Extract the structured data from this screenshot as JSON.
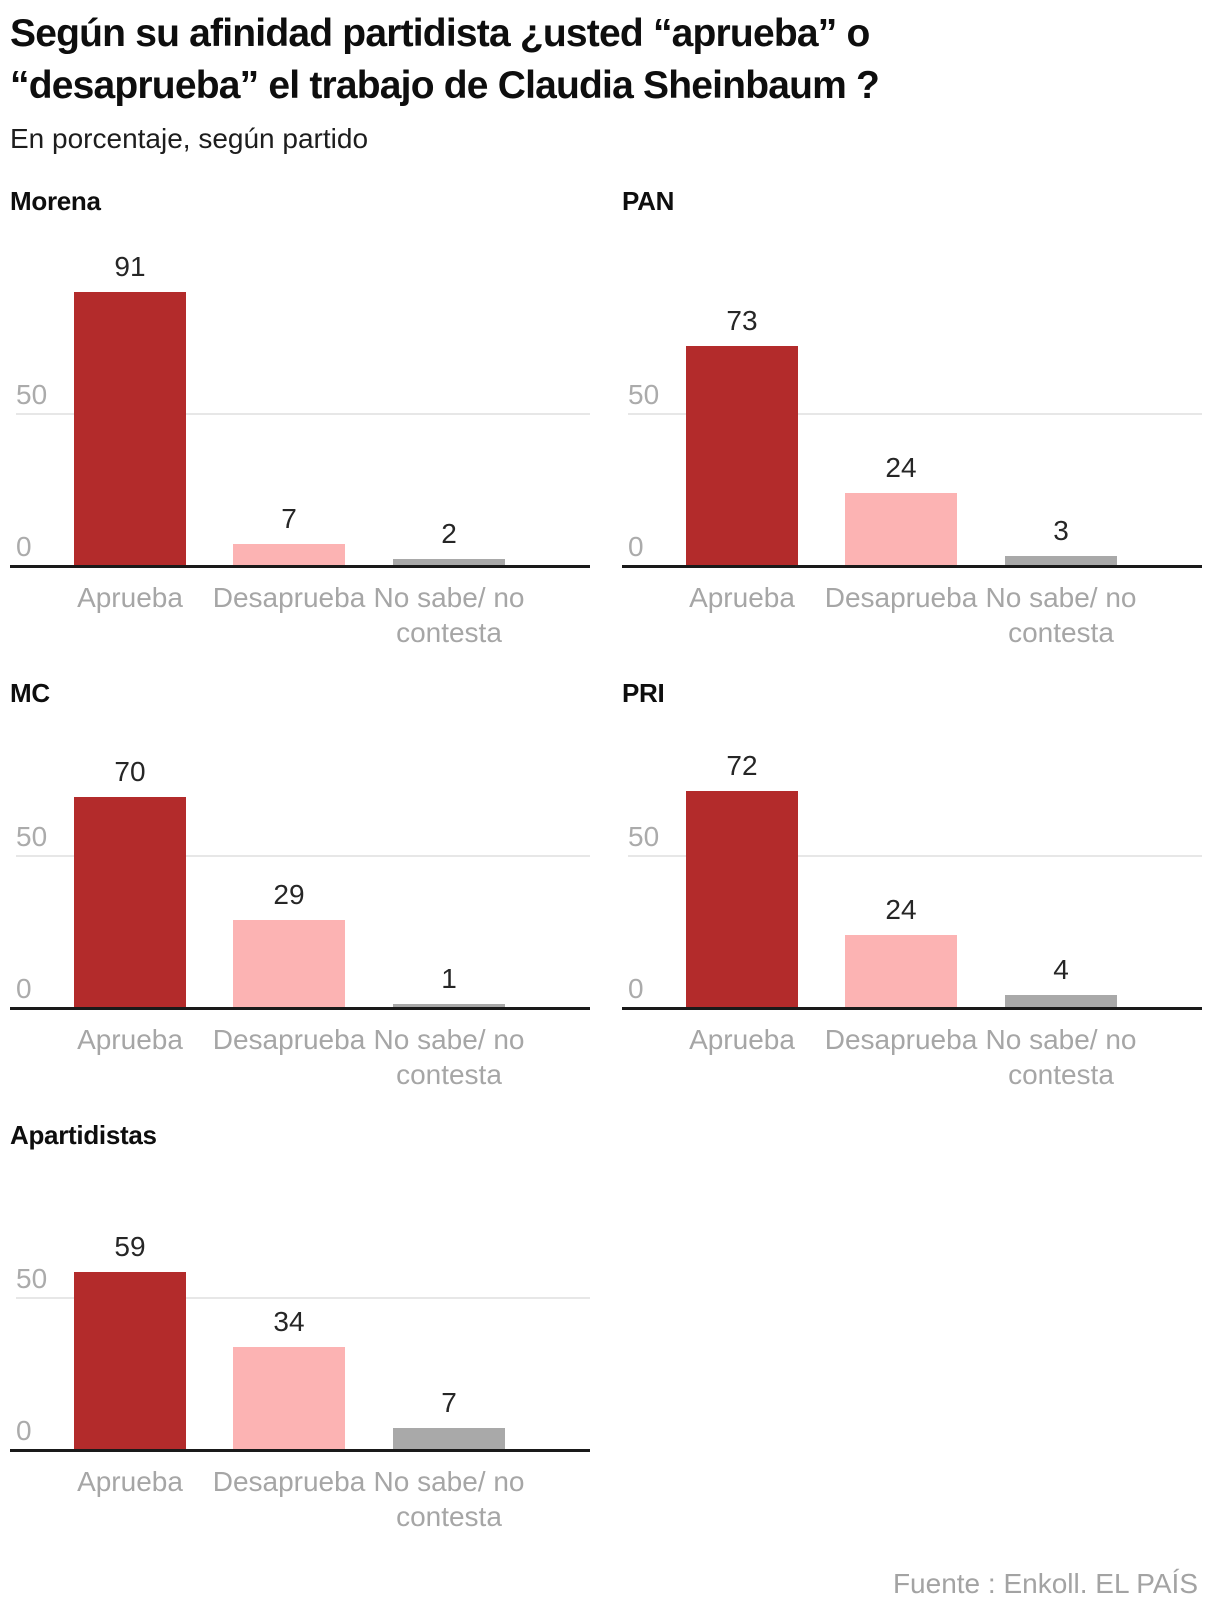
{
  "header": {
    "title_line1": "Según su afinidad partidista ¿usted “aprueba” o",
    "title_line2": "“desaprueba” el trabajo de Claudia Sheinbaum ?",
    "subtitle": "En porcentaje, según partido"
  },
  "footer": {
    "source": "Fuente : Enkoll. EL PAÍS"
  },
  "colors": {
    "bars": [
      "#b32b2b",
      "#fcb3b3",
      "#a9a9a9"
    ],
    "axis_line": "#1a1a1a",
    "gridline": "#e7e7e7",
    "tick_text": "#a6a6a6",
    "value_text": "#262626"
  },
  "chart_data": [
    {
      "type": "bar",
      "title": "Morena",
      "categories": [
        "Aprueba",
        "Desaprueba",
        "No sabe/ no contesta"
      ],
      "values": [
        91,
        7,
        2
      ],
      "ylim": [
        0,
        100
      ],
      "yticks": [
        0,
        50
      ],
      "grid": true,
      "legend": "none"
    },
    {
      "type": "bar",
      "title": "PAN",
      "categories": [
        "Aprueba",
        "Desaprueba",
        "No sabe/ no contesta"
      ],
      "values": [
        73,
        24,
        3
      ],
      "ylim": [
        0,
        100
      ],
      "yticks": [
        0,
        50
      ],
      "grid": true,
      "legend": "none"
    },
    {
      "type": "bar",
      "title": "MC",
      "categories": [
        "Aprueba",
        "Desaprueba",
        "No sabe/ no contesta"
      ],
      "values": [
        70,
        29,
        1
      ],
      "ylim": [
        0,
        100
      ],
      "yticks": [
        0,
        50
      ],
      "grid": true,
      "legend": "none"
    },
    {
      "type": "bar",
      "title": "PRI",
      "categories": [
        "Aprueba",
        "Desaprueba",
        "No sabe/ no contesta"
      ],
      "values": [
        72,
        24,
        4
      ],
      "ylim": [
        0,
        100
      ],
      "yticks": [
        0,
        50
      ],
      "grid": true,
      "legend": "none"
    },
    {
      "type": "bar",
      "title": "Apartidistas",
      "categories": [
        "Aprueba",
        "Desaprueba",
        "No sabe/ no contesta"
      ],
      "values": [
        59,
        34,
        7
      ],
      "ylim": [
        0,
        100
      ],
      "yticks": [
        0,
        50
      ],
      "grid": true,
      "legend": "none"
    }
  ]
}
